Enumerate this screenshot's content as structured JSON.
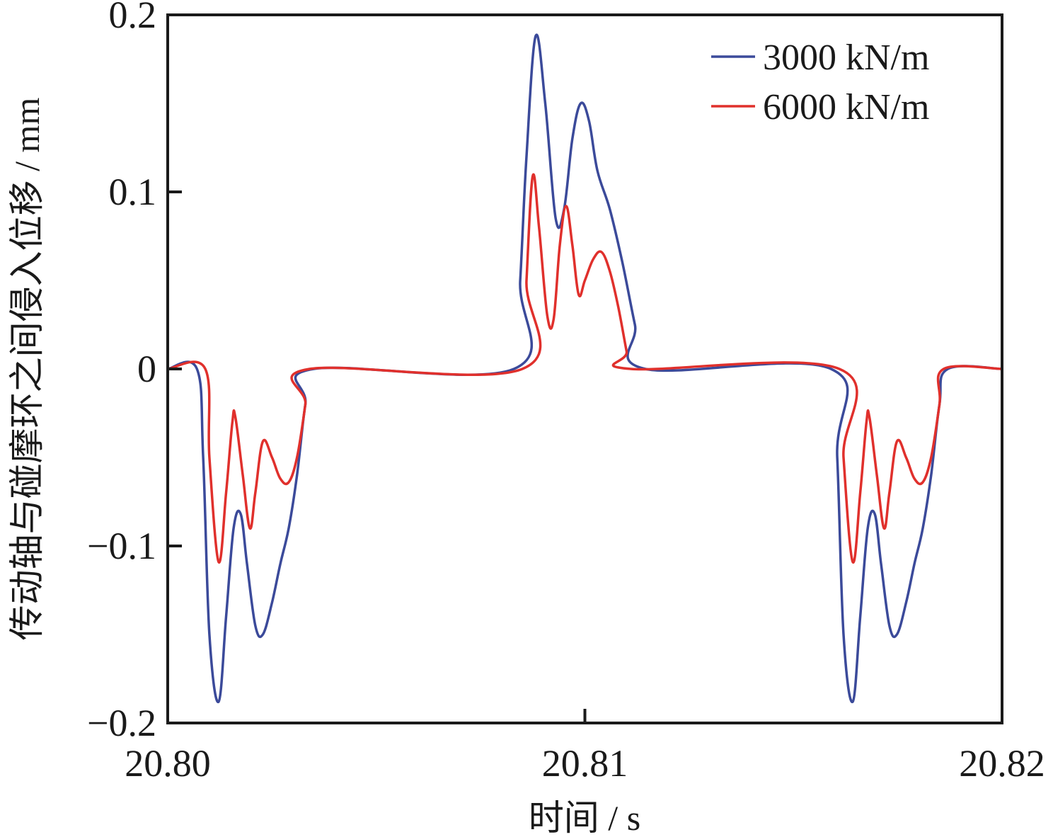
{
  "chart_data": {
    "type": "line",
    "xlabel": "时间 / s",
    "ylabel": "传动轴与碰摩环之间侵入位移 / mm",
    "xlim": [
      20.8,
      20.82
    ],
    "ylim": [
      -0.2,
      0.2
    ],
    "x_ticks": [
      {
        "value": 20.8,
        "label": "20.80"
      },
      {
        "value": 20.81,
        "label": "20.81"
      },
      {
        "value": 20.82,
        "label": "20.82"
      }
    ],
    "y_ticks": [
      {
        "value": -0.2,
        "label": "−0.2"
      },
      {
        "value": -0.1,
        "label": "−0.1"
      },
      {
        "value": 0,
        "label": "0"
      },
      {
        "value": 0.1,
        "label": "0.1"
      },
      {
        "value": 0.2,
        "label": "0.2"
      }
    ],
    "grid": false,
    "legend": "top-right",
    "series": [
      {
        "name": "3000 kN/m",
        "color": "#3b4a9a",
        "points": [
          [
            20.8,
            0
          ],
          [
            20.8007,
            0
          ],
          [
            20.80085,
            -0.05
          ],
          [
            20.801,
            -0.15
          ],
          [
            20.80122,
            -0.188
          ],
          [
            20.8014,
            -0.14
          ],
          [
            20.80158,
            -0.09
          ],
          [
            20.80175,
            -0.082
          ],
          [
            20.8019,
            -0.11
          ],
          [
            20.8021,
            -0.145
          ],
          [
            20.80228,
            -0.15
          ],
          [
            20.8025,
            -0.132
          ],
          [
            20.8027,
            -0.11
          ],
          [
            20.8029,
            -0.09
          ],
          [
            20.8031,
            -0.06
          ],
          [
            20.8033,
            -0.02
          ],
          [
            20.8035,
            0
          ],
          [
            20.8083,
            0
          ],
          [
            20.80845,
            0.05
          ],
          [
            20.8086,
            0.12
          ],
          [
            20.80882,
            0.188
          ],
          [
            20.80905,
            0.15
          ],
          [
            20.8093,
            0.085
          ],
          [
            20.8095,
            0.09
          ],
          [
            20.8097,
            0.13
          ],
          [
            20.8099,
            0.15
          ],
          [
            20.8101,
            0.14
          ],
          [
            20.8103,
            0.112
          ],
          [
            20.8106,
            0.09
          ],
          [
            20.8109,
            0.06
          ],
          [
            20.8112,
            0.025
          ],
          [
            20.81145,
            0
          ],
          [
            20.8159,
            0
          ],
          [
            20.81605,
            -0.05
          ],
          [
            20.8162,
            -0.15
          ],
          [
            20.81642,
            -0.188
          ],
          [
            20.8166,
            -0.14
          ],
          [
            20.81678,
            -0.09
          ],
          [
            20.81695,
            -0.082
          ],
          [
            20.8171,
            -0.11
          ],
          [
            20.8173,
            -0.145
          ],
          [
            20.81748,
            -0.15
          ],
          [
            20.8177,
            -0.132
          ],
          [
            20.8179,
            -0.11
          ],
          [
            20.8181,
            -0.09
          ],
          [
            20.8183,
            -0.06
          ],
          [
            20.8185,
            -0.02
          ],
          [
            20.8187,
            0
          ],
          [
            20.82,
            0
          ]
        ]
      },
      {
        "name": "6000 kN/m",
        "color": "#e0302c",
        "points": [
          [
            20.8,
            0
          ],
          [
            20.8009,
            0
          ],
          [
            20.801,
            -0.05
          ],
          [
            20.80122,
            -0.109
          ],
          [
            20.8014,
            -0.07
          ],
          [
            20.80155,
            -0.03
          ],
          [
            20.80162,
            -0.027
          ],
          [
            20.8018,
            -0.06
          ],
          [
            20.80197,
            -0.09
          ],
          [
            20.8021,
            -0.07
          ],
          [
            20.80228,
            -0.041
          ],
          [
            20.8025,
            -0.05
          ],
          [
            20.8027,
            -0.062
          ],
          [
            20.8029,
            -0.064
          ],
          [
            20.8031,
            -0.05
          ],
          [
            20.8033,
            -0.02
          ],
          [
            20.8034,
            0
          ],
          [
            20.8085,
            0
          ],
          [
            20.8086,
            0.05
          ],
          [
            20.80875,
            0.109
          ],
          [
            20.8089,
            0.08
          ],
          [
            20.8091,
            0.03
          ],
          [
            20.80925,
            0.028
          ],
          [
            20.8094,
            0.07
          ],
          [
            20.80955,
            0.092
          ],
          [
            20.8097,
            0.07
          ],
          [
            20.80985,
            0.042
          ],
          [
            20.81,
            0.05
          ],
          [
            20.8102,
            0.062
          ],
          [
            20.8104,
            0.066
          ],
          [
            20.8106,
            0.055
          ],
          [
            20.8108,
            0.035
          ],
          [
            20.811,
            0.01
          ],
          [
            20.8111,
            0
          ],
          [
            20.8161,
            0
          ],
          [
            20.8162,
            -0.05
          ],
          [
            20.81642,
            -0.109
          ],
          [
            20.8166,
            -0.07
          ],
          [
            20.81675,
            -0.03
          ],
          [
            20.81682,
            -0.027
          ],
          [
            20.817,
            -0.06
          ],
          [
            20.81717,
            -0.09
          ],
          [
            20.8173,
            -0.07
          ],
          [
            20.81748,
            -0.041
          ],
          [
            20.8177,
            -0.05
          ],
          [
            20.8179,
            -0.062
          ],
          [
            20.8181,
            -0.064
          ],
          [
            20.8183,
            -0.05
          ],
          [
            20.8185,
            -0.02
          ],
          [
            20.8186,
            0
          ],
          [
            20.82,
            0
          ]
        ]
      }
    ]
  }
}
